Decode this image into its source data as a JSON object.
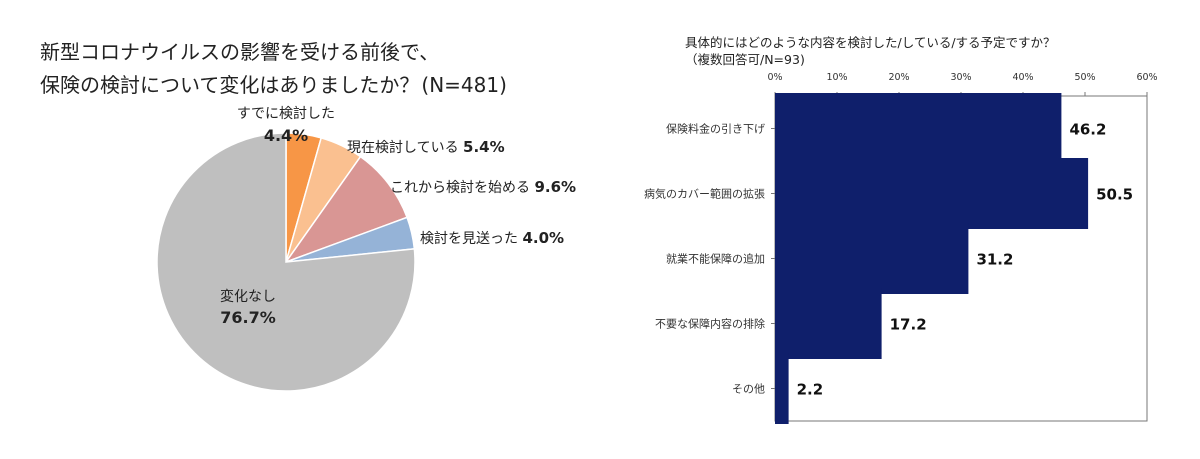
{
  "chart_data": [
    {
      "type": "pie",
      "title_line1": "新型コロナウイルスの影響を受ける前後で、",
      "title_line2": "保険の検討について変化はありましたか？",
      "title_suffix": "(N=481)",
      "slices": [
        {
          "label": "すでに検討した",
          "value_label": "4.4%",
          "value": 4.4,
          "color": "#f79646"
        },
        {
          "label": "現在検討している",
          "value_label": "5.4%",
          "value": 5.4,
          "color": "#fac090"
        },
        {
          "label": "これから検討を始める",
          "value_label": "9.6%",
          "value": 9.6,
          "color": "#d99694"
        },
        {
          "label": "検討を見送った",
          "value_label": "4.0%",
          "value": 4.0,
          "color": "#95b3d7"
        },
        {
          "label": "変化なし",
          "value_label": "76.7%",
          "value": 76.7,
          "color": "#bfbfbf"
        }
      ]
    },
    {
      "type": "bar",
      "orientation": "horizontal",
      "title_line1": "具体的にはどのような内容を検討した/している/する予定ですか？",
      "title_line2": "（複数回答可/N=93)",
      "categories": [
        "保険料金の引き下げ",
        "病気のカバー範囲の拡張",
        "就業不能保障の追加",
        "不要な保障内容の排除",
        "その他"
      ],
      "values": [
        46.2,
        50.5,
        31.2,
        17.2,
        2.2
      ],
      "value_labels": [
        "46.2",
        "50.5",
        "31.2",
        "17.2",
        "2.2"
      ],
      "xlim": [
        0,
        60
      ],
      "ticks": [
        "0%",
        "10%",
        "20%",
        "30%",
        "40%",
        "50%",
        "60%"
      ],
      "bar_color": "#0f1f6b",
      "grid": false
    }
  ]
}
